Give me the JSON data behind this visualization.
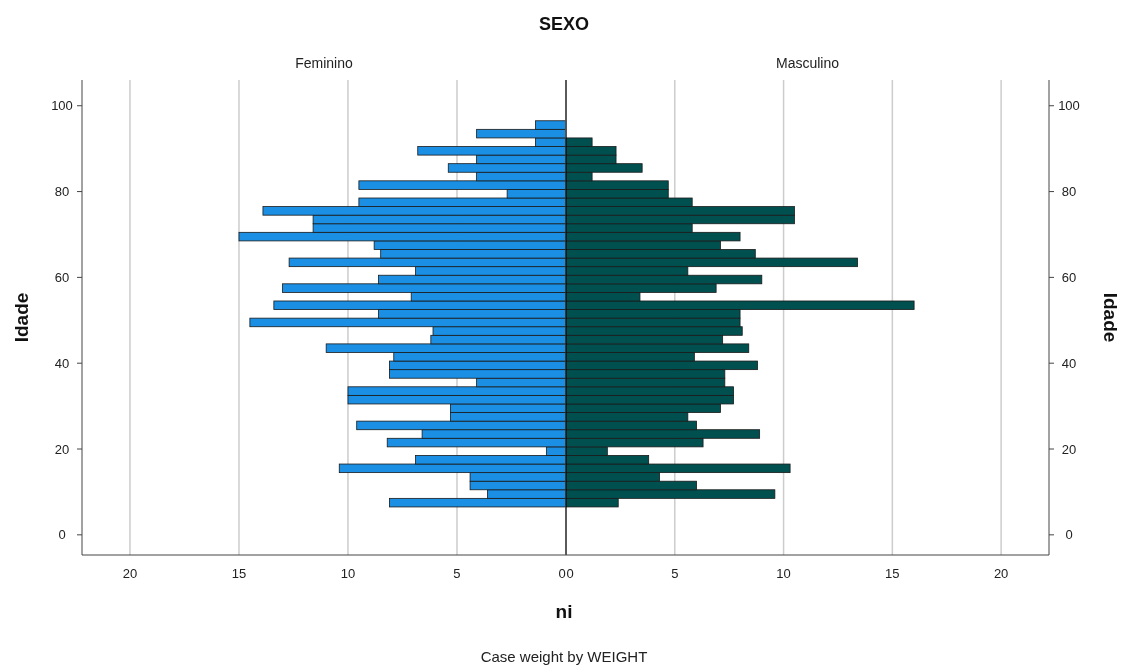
{
  "chart_data": [
    {
      "type": "histogram",
      "orientation": "horizontal",
      "title": "SEXO",
      "subtitle": "Feminino",
      "xlabel": "ni",
      "ylabel": "Idade",
      "annotations": [
        "Case weight by WEIGHT"
      ],
      "color": "#1a8fe3",
      "grid": "x",
      "bins": [
        6.5,
        8.5,
        10.5,
        12.5,
        14.5,
        16.5,
        18.5,
        20.5,
        22.5,
        24.5,
        26.5,
        28.5,
        30.5,
        32.5,
        34.5,
        36.5,
        38.5,
        40.5,
        42.5,
        44.5,
        46.5,
        48.5,
        50.5,
        52.5,
        54.5,
        56.5,
        58.5,
        60.5,
        62.5,
        64.5,
        66.5,
        68.5,
        70.5,
        72.5,
        74.5,
        76.5,
        78.5,
        80.5,
        82.5,
        84.5,
        86.5,
        88.5,
        90.5,
        92.5,
        94.5,
        96.5
      ],
      "values": [
        8.1,
        3.6,
        4.4,
        4.4,
        10.4,
        6.9,
        0.9,
        8.2,
        6.6,
        9.6,
        5.3,
        5.3,
        10.0,
        10.0,
        4.1,
        8.1,
        8.1,
        7.9,
        11.0,
        6.2,
        6.1,
        14.5,
        8.6,
        13.4,
        7.1,
        13.0,
        8.6,
        6.9,
        12.7,
        8.5,
        8.8,
        15.0,
        11.6,
        11.6,
        13.9,
        9.5,
        2.7,
        9.5,
        4.1,
        5.4,
        4.1,
        6.8,
        1.4,
        4.1,
        1.4
      ],
      "xlim": [
        22.2,
        0
      ],
      "xticks": [
        20,
        15,
        10,
        5,
        0
      ],
      "ylim": [
        -4.7,
        106
      ],
      "yticks": [
        0,
        20,
        40,
        60,
        80,
        100
      ]
    },
    {
      "type": "histogram",
      "orientation": "horizontal",
      "subtitle": "Masculino",
      "ylabel": "Idade",
      "color": "#005050",
      "grid": "x",
      "bins": [
        6.5,
        8.5,
        10.5,
        12.5,
        14.5,
        16.5,
        18.5,
        20.5,
        22.5,
        24.5,
        26.5,
        28.5,
        30.5,
        32.5,
        34.5,
        36.5,
        38.5,
        40.5,
        42.5,
        44.5,
        46.5,
        48.5,
        50.5,
        52.5,
        54.5,
        56.5,
        58.5,
        60.5,
        62.5,
        64.5,
        66.5,
        68.5,
        70.5,
        72.5,
        74.5,
        76.5,
        78.5,
        80.5,
        82.5,
        84.5,
        86.5,
        88.5,
        90.5,
        92.5,
        94.5,
        96.5
      ],
      "values": [
        2.4,
        9.6,
        6.0,
        4.3,
        10.3,
        3.8,
        1.9,
        6.3,
        8.9,
        6.0,
        5.6,
        7.1,
        7.7,
        7.7,
        7.3,
        7.3,
        8.8,
        5.9,
        8.4,
        7.2,
        8.1,
        8.0,
        8.0,
        16.0,
        3.4,
        6.9,
        9.0,
        5.6,
        13.4,
        8.7,
        7.1,
        8.0,
        5.8,
        10.5,
        10.5,
        5.8,
        4.7,
        4.7,
        1.2,
        3.5,
        2.3,
        2.3,
        1.2,
        0,
        0
      ],
      "xlim": [
        0,
        22.2
      ],
      "xticks": [
        0,
        5,
        10,
        15,
        20
      ],
      "ylim": [
        -4.7,
        106
      ],
      "yticks": [
        0,
        20,
        40,
        60,
        80,
        100
      ]
    }
  ]
}
